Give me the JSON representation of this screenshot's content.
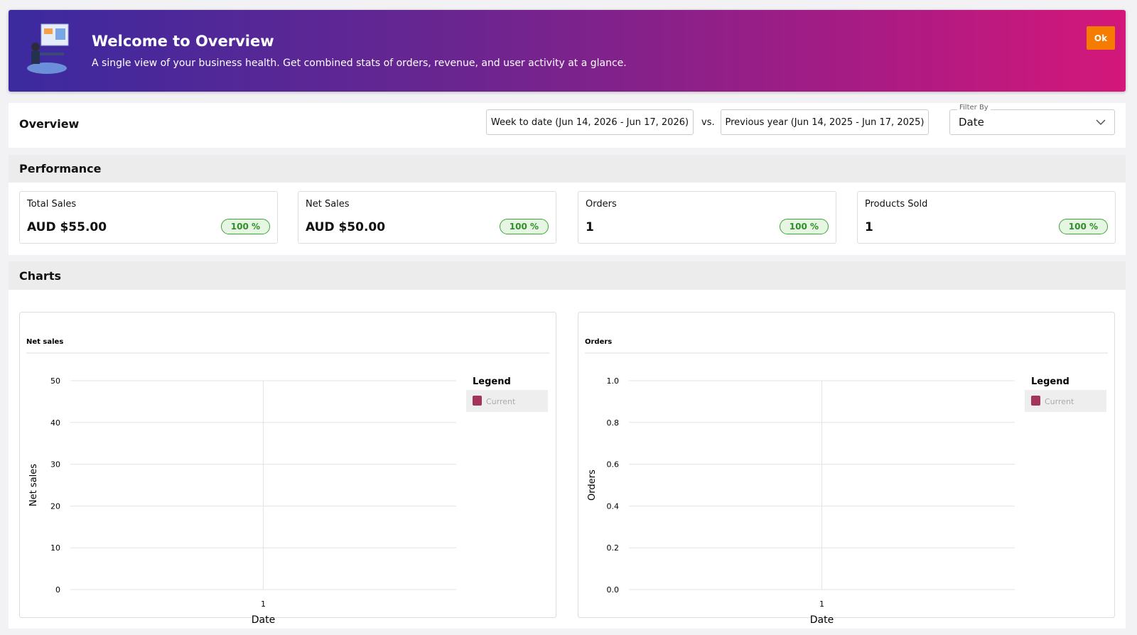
{
  "banner": {
    "title": "Welcome to Overview",
    "description": "A single view of your business health. Get combined stats of orders, revenue, and user activity at a glance.",
    "button": "Ok"
  },
  "overview": {
    "title": "Overview",
    "range_primary": "Week to date (Jun 14, 2026 - Jun 17, 2026)",
    "vs": "vs.",
    "range_secondary": "Previous year (Jun 14, 2025 - Jun 17, 2025)",
    "filter_label": "Filter By",
    "filter_value": "Date"
  },
  "performance": {
    "title": "Performance",
    "cards": [
      {
        "label": "Total Sales",
        "value": "AUD $55.00",
        "change": "100 %"
      },
      {
        "label": "Net Sales",
        "value": "AUD $50.00",
        "change": "100 %"
      },
      {
        "label": "Orders",
        "value": "1",
        "change": "100 %"
      },
      {
        "label": "Products Sold",
        "value": "1",
        "change": "100 %"
      }
    ]
  },
  "charts_section": {
    "title": "Charts"
  },
  "chart_data": [
    {
      "type": "line",
      "title": "Net sales",
      "x_label": "Date",
      "y_label": "Net sales",
      "categories": [
        "1"
      ],
      "legend_title": "Legend",
      "series": [
        {
          "name": "Current",
          "color": "#a3345a",
          "values": [
            null
          ]
        }
      ],
      "ylim": [
        0,
        50
      ],
      "yticks": [
        0,
        10,
        20,
        30,
        40,
        50
      ],
      "grid": true
    },
    {
      "type": "line",
      "title": "Orders",
      "x_label": "Date",
      "y_label": "Orders",
      "categories": [
        "1"
      ],
      "legend_title": "Legend",
      "series": [
        {
          "name": "Current",
          "color": "#a3345a",
          "values": [
            null
          ]
        }
      ],
      "ylim": [
        0,
        1
      ],
      "yticks": [
        {
          "value": 0,
          "label": "0.0"
        },
        0.2,
        0.4,
        0.6,
        0.8,
        {
          "value": 1,
          "label": "1.0"
        }
      ],
      "grid": true
    }
  ]
}
